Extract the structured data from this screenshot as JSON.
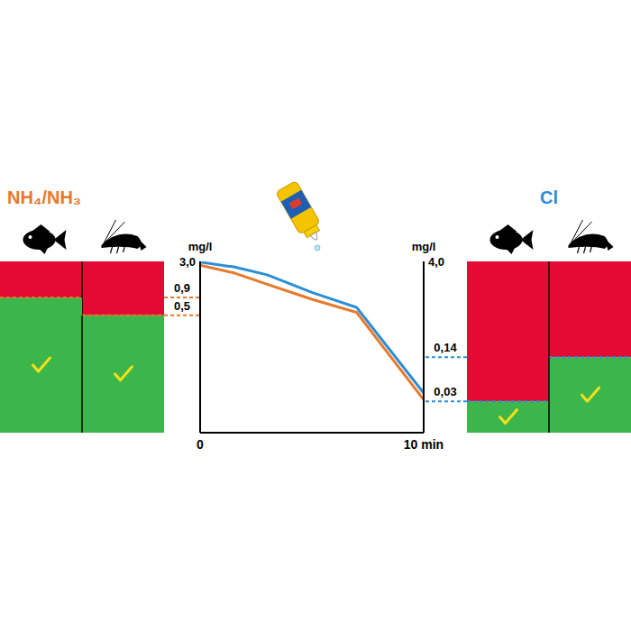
{
  "chart_data": {
    "type": "line",
    "x": [
      0,
      1.5,
      3,
      5,
      7,
      10
    ],
    "xlim": [
      0,
      10
    ],
    "xticks": [
      0,
      {
        "value": 10,
        "label": "10 min"
      }
    ],
    "y_label": "mg/l",
    "y2_label": "mg/l",
    "ylim": [
      0.01,
      3.0
    ],
    "yticks": [
      {
        "value": 0.5,
        "label": "0,5"
      },
      {
        "value": 0.9,
        "label": "0,9"
      },
      {
        "value": 3.0,
        "label": "3,0"
      }
    ],
    "y2lim": [
      0.01,
      4.0
    ],
    "y2ticks": [
      {
        "value": 0.03,
        "label": "0,03"
      },
      {
        "value": 0.14,
        "label": "0,14"
      },
      {
        "value": 4.0,
        "label": "4,0"
      }
    ],
    "log": "y",
    "series": [
      {
        "name": "NH₄/NH₃",
        "color": "#e8782a",
        "values": [
          2.65,
          2.05,
          1.4,
          0.85,
          0.55,
          0.03
        ],
        "limits": [
          0.9,
          0.5
        ]
      },
      {
        "name": "Cl",
        "color": "#2b8ed6",
        "axis": "y2",
        "values": [
          3.9,
          3.3,
          2.5,
          1.35,
          0.8,
          0.04
        ],
        "limits": [
          0.03,
          0.14
        ]
      }
    ]
  }
}
